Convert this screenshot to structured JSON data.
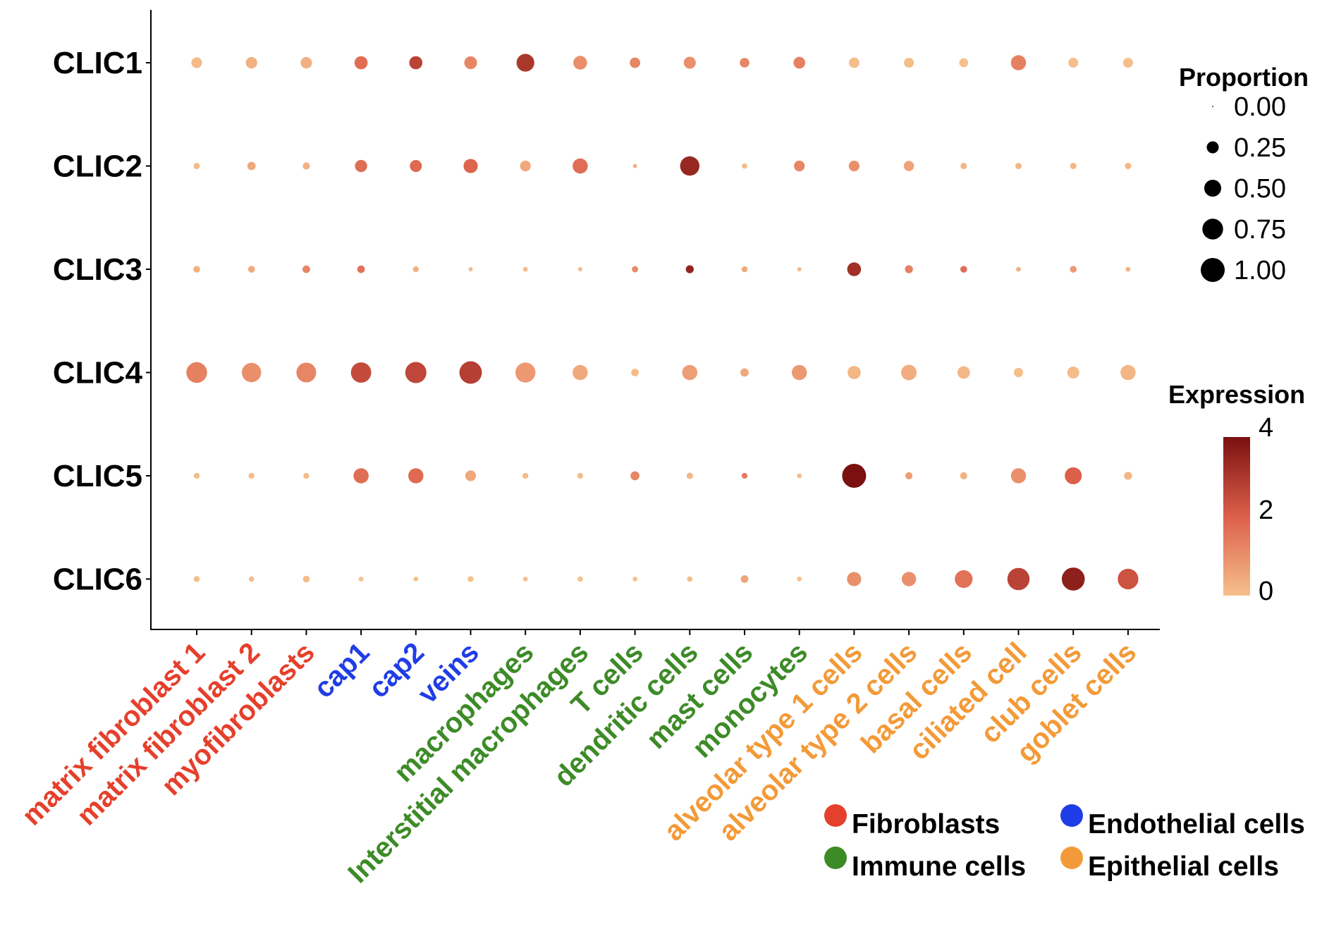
{
  "chart_data": {
    "type": "dot",
    "genes": [
      "CLIC1",
      "CLIC2",
      "CLIC3",
      "CLIC4",
      "CLIC5",
      "CLIC6"
    ],
    "categories": [
      {
        "label": "matrix fibroblast 1",
        "group": "Fibroblasts"
      },
      {
        "label": "matrix fibroblast 2",
        "group": "Fibroblasts"
      },
      {
        "label": "myofibroblasts",
        "group": "Fibroblasts"
      },
      {
        "label": "cap1",
        "group": "Endothelial cells"
      },
      {
        "label": "cap2",
        "group": "Endothelial cells"
      },
      {
        "label": "veins",
        "group": "Endothelial cells"
      },
      {
        "label": "macrophages",
        "group": "Immune cells"
      },
      {
        "label": "Interstitial macrophages",
        "group": "Immune cells"
      },
      {
        "label": "T cells",
        "group": "Immune cells"
      },
      {
        "label": "dendritic cells",
        "group": "Immune cells"
      },
      {
        "label": "mast cells",
        "group": "Immune cells"
      },
      {
        "label": "monocytes",
        "group": "Immune cells"
      },
      {
        "label": "alveolar type 1 cells",
        "group": "Epithelial cells"
      },
      {
        "label": "alveolar type 2 cells",
        "group": "Epithelial cells"
      },
      {
        "label": "basal cells",
        "group": "Epithelial cells"
      },
      {
        "label": "ciliated cell",
        "group": "Epithelial cells"
      },
      {
        "label": "club cells",
        "group": "Epithelial cells"
      },
      {
        "label": "goblet cells",
        "group": "Epithelial cells"
      }
    ],
    "proportion": [
      [
        0.2,
        0.23,
        0.23,
        0.3,
        0.3,
        0.28,
        0.55,
        0.33,
        0.19,
        0.25,
        0.16,
        0.24,
        0.19,
        0.17,
        0.14,
        0.4,
        0.17,
        0.17
      ],
      [
        0.07,
        0.12,
        0.09,
        0.26,
        0.25,
        0.35,
        0.2,
        0.4,
        0.03,
        0.65,
        0.05,
        0.2,
        0.2,
        0.18,
        0.07,
        0.07,
        0.07,
        0.07
      ],
      [
        0.08,
        0.08,
        0.1,
        0.1,
        0.06,
        0.03,
        0.04,
        0.03,
        0.07,
        0.11,
        0.06,
        0.03,
        0.33,
        0.11,
        0.08,
        0.04,
        0.08,
        0.04
      ],
      [
        0.75,
        0.65,
        0.68,
        0.72,
        0.78,
        0.88,
        0.7,
        0.4,
        0.1,
        0.4,
        0.12,
        0.4,
        0.3,
        0.42,
        0.27,
        0.15,
        0.25,
        0.4
      ],
      [
        0.06,
        0.06,
        0.06,
        0.4,
        0.4,
        0.2,
        0.06,
        0.06,
        0.14,
        0.07,
        0.06,
        0.04,
        1.0,
        0.09,
        0.09,
        0.4,
        0.5,
        0.11
      ],
      [
        0.06,
        0.05,
        0.08,
        0.04,
        0.04,
        0.06,
        0.04,
        0.05,
        0.04,
        0.05,
        0.1,
        0.04,
        0.35,
        0.36,
        0.55,
        0.86,
        0.92,
        0.74
      ]
    ],
    "expression": [
      [
        0.1,
        0.3,
        0.3,
        1.7,
        2.7,
        1.2,
        3.0,
        1.0,
        1.2,
        1.0,
        1.2,
        1.3,
        0.05,
        0.05,
        0.0,
        1.3,
        0.05,
        0.05
      ],
      [
        0.1,
        0.5,
        0.3,
        1.7,
        1.8,
        1.9,
        0.5,
        1.7,
        0.3,
        3.4,
        0.1,
        1.2,
        1.0,
        0.6,
        0.2,
        0.2,
        0.2,
        0.2
      ],
      [
        0.3,
        0.5,
        1.2,
        1.6,
        0.3,
        0.1,
        0.1,
        0.1,
        1.1,
        3.5,
        0.5,
        0.2,
        3.2,
        1.3,
        1.7,
        0.3,
        0.8,
        0.3
      ],
      [
        1.3,
        1.0,
        1.2,
        2.5,
        2.6,
        2.8,
        0.8,
        0.5,
        0.1,
        0.7,
        0.5,
        0.8,
        0.2,
        0.4,
        0.2,
        0.05,
        0.1,
        0.2
      ],
      [
        0.1,
        0.1,
        0.1,
        1.7,
        1.8,
        0.5,
        0.1,
        0.1,
        1.2,
        0.2,
        1.4,
        0.1,
        4.0,
        0.7,
        0.3,
        1.0,
        2.0,
        0.2
      ],
      [
        0.1,
        0.1,
        0.1,
        0.0,
        0.0,
        0.0,
        0.0,
        0.0,
        0.0,
        0.1,
        0.6,
        0.0,
        1.0,
        1.0,
        1.6,
        2.7,
        3.6,
        2.3
      ]
    ],
    "proportion_legend": {
      "title": "Proportion",
      "values": [
        0.0,
        0.25,
        0.5,
        0.75,
        1.0
      ],
      "labels": [
        "0.00",
        "0.25",
        "0.50",
        "0.75",
        "1.00"
      ]
    },
    "expression_legend": {
      "title": "Expression",
      "range": [
        0,
        4
      ],
      "ticks": [
        "4",
        "2",
        "0"
      ],
      "low_color": "#f6c08c",
      "mid_color": "#dc5f4a",
      "high_color": "#7a1010"
    },
    "groups": [
      {
        "name": "Fibroblasts",
        "color": "#e5402c"
      },
      {
        "name": "Endothelial cells",
        "color": "#1f3de6"
      },
      {
        "name": "Immune cells",
        "color": "#3d8b27"
      },
      {
        "name": "Epithelial cells",
        "color": "#f39a38"
      }
    ]
  }
}
